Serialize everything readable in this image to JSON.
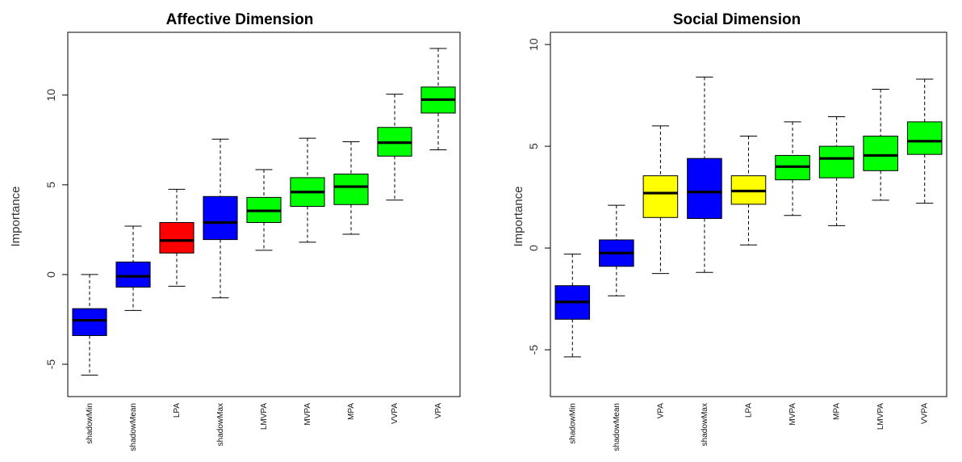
{
  "colors": {
    "shadow": "#0000ff",
    "rejected": "#ff0000",
    "tentative": "#ffff00",
    "confirmed": "#00ff00"
  },
  "chart_data": [
    {
      "type": "boxplot",
      "title": "Affective Dimension",
      "ylabel": "Importance",
      "xlabel": "",
      "ylim": [
        -6.8,
        13.5
      ],
      "yticks": [
        -5,
        0,
        5,
        10
      ],
      "grid": false,
      "categories": [
        "shadowMin",
        "shadowMean",
        "LPA",
        "shadowMax",
        "LMVPA",
        "MVPA",
        "MPA",
        "VVPA",
        "VPA"
      ],
      "boxes": [
        {
          "label": "shadowMin",
          "color": "#0000ff",
          "min": -5.6,
          "q1": -3.4,
          "median": -2.55,
          "q3": -1.9,
          "max": 0.0
        },
        {
          "label": "shadowMean",
          "color": "#0000ff",
          "min": -2.0,
          "q1": -0.7,
          "median": -0.1,
          "q3": 0.7,
          "max": 2.7
        },
        {
          "label": "LPA",
          "color": "#ff0000",
          "min": -0.65,
          "q1": 1.2,
          "median": 1.9,
          "q3": 2.9,
          "max": 4.75
        },
        {
          "label": "shadowMax",
          "color": "#0000ff",
          "min": -1.3,
          "q1": 1.95,
          "median": 2.9,
          "q3": 4.35,
          "max": 7.55
        },
        {
          "label": "LMVPA",
          "color": "#00ff00",
          "min": 1.35,
          "q1": 2.9,
          "median": 3.55,
          "q3": 4.3,
          "max": 5.85
        },
        {
          "label": "MVPA",
          "color": "#00ff00",
          "min": 1.8,
          "q1": 3.8,
          "median": 4.6,
          "q3": 5.4,
          "max": 7.6
        },
        {
          "label": "MPA",
          "color": "#00ff00",
          "min": 2.25,
          "q1": 3.9,
          "median": 4.9,
          "q3": 5.6,
          "max": 7.4
        },
        {
          "label": "VVPA",
          "color": "#00ff00",
          "min": 4.15,
          "q1": 6.6,
          "median": 7.35,
          "q3": 8.2,
          "max": 10.05
        },
        {
          "label": "VPA",
          "color": "#00ff00",
          "min": 6.95,
          "q1": 9.0,
          "median": 9.75,
          "q3": 10.45,
          "max": 12.6
        }
      ]
    },
    {
      "type": "boxplot",
      "title": "Social Dimension",
      "ylabel": "Importance",
      "xlabel": "",
      "ylim": [
        -7.3,
        10.6
      ],
      "yticks": [
        -5,
        0,
        5,
        10
      ],
      "grid": false,
      "categories": [
        "shadowMin",
        "shadowMean",
        "VPA",
        "shadowMax",
        "LPA",
        "MVPA",
        "MPA",
        "LMVPA",
        "VVPA"
      ],
      "boxes": [
        {
          "label": "shadowMin",
          "color": "#0000ff",
          "min": -5.35,
          "q1": -3.5,
          "median": -2.65,
          "q3": -1.85,
          "max": -0.3
        },
        {
          "label": "shadowMean",
          "color": "#0000ff",
          "min": -2.35,
          "q1": -0.9,
          "median": -0.25,
          "q3": 0.4,
          "max": 2.1
        },
        {
          "label": "VPA",
          "color": "#ffff00",
          "min": -1.25,
          "q1": 1.5,
          "median": 2.7,
          "q3": 3.55,
          "max": 6.0
        },
        {
          "label": "shadowMax",
          "color": "#0000ff",
          "min": -1.2,
          "q1": 1.45,
          "median": 2.75,
          "q3": 4.4,
          "max": 8.4
        },
        {
          "label": "LPA",
          "color": "#ffff00",
          "min": 0.15,
          "q1": 2.15,
          "median": 2.8,
          "q3": 3.55,
          "max": 5.5
        },
        {
          "label": "MVPA",
          "color": "#00ff00",
          "min": 1.6,
          "q1": 3.35,
          "median": 4.0,
          "q3": 4.55,
          "max": 6.2
        },
        {
          "label": "MPA",
          "color": "#00ff00",
          "min": 1.1,
          "q1": 3.45,
          "median": 4.4,
          "q3": 5.0,
          "max": 6.45
        },
        {
          "label": "LMVPA",
          "color": "#00ff00",
          "min": 2.35,
          "q1": 3.8,
          "median": 4.55,
          "q3": 5.5,
          "max": 7.8
        },
        {
          "label": "VVPA",
          "color": "#00ff00",
          "min": 2.2,
          "q1": 4.6,
          "median": 5.25,
          "q3": 6.2,
          "max": 8.3
        }
      ]
    }
  ]
}
